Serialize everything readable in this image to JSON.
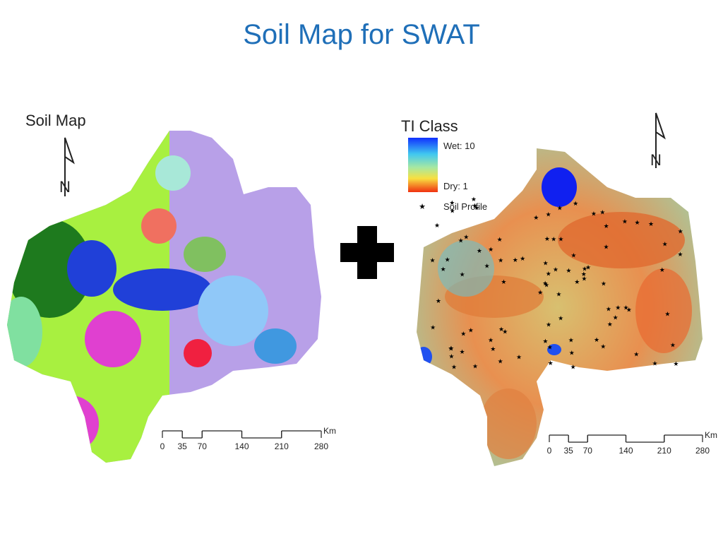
{
  "title": "Soil Map for SWAT",
  "left_map": {
    "title": "Soil Map",
    "north": "N",
    "scale": {
      "ticks": [
        0,
        35,
        70,
        140,
        210,
        280
      ],
      "unit": "Km"
    }
  },
  "right_map": {
    "legend": {
      "title": "TI Class",
      "high": "Wet: 10",
      "low": "Dry: 1",
      "points": "Soil Profile"
    },
    "north": "N",
    "scale": {
      "ticks": [
        0,
        35,
        70,
        140,
        210,
        280
      ],
      "unit": "Km"
    }
  }
}
